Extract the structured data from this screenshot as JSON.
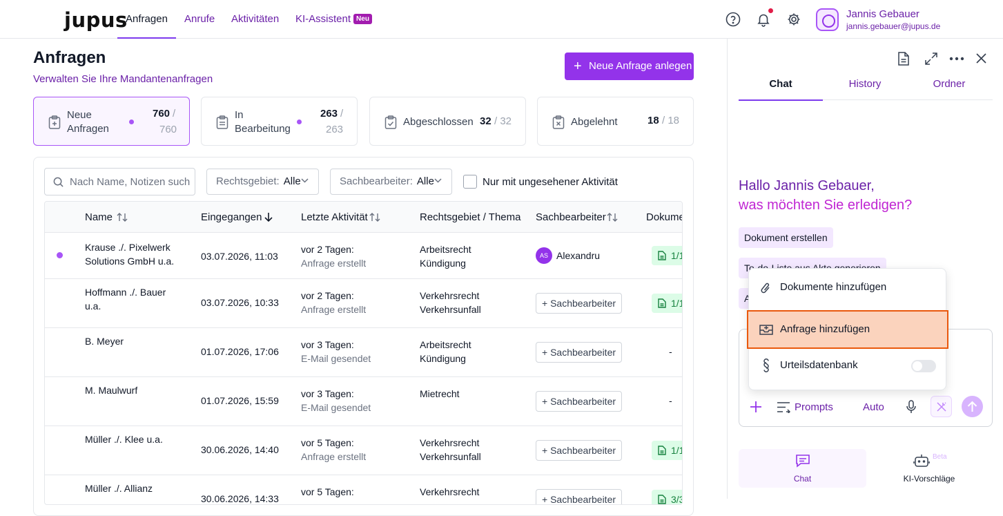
{
  "header": {
    "logo": "jupus",
    "nav": [
      {
        "label": "Anfragen",
        "active": true
      },
      {
        "label": "Anrufe"
      },
      {
        "label": "Aktivitäten"
      },
      {
        "label": "KI-Assistent",
        "badge": "Neu"
      }
    ],
    "user": {
      "name": "Jannis Gebauer",
      "email": "jannis.gebauer@jupus.de"
    }
  },
  "main": {
    "title": "Anfragen",
    "subtitle": "Verwalten Sie Ihre Mandantenanfragen",
    "new_button": "Neue Anfrage anlegen",
    "stats": [
      {
        "label_l1": "Neue",
        "label_l2": "Anfragen",
        "count": "760",
        "sep": "/",
        "total": "760"
      },
      {
        "label_l1": "In",
        "label_l2": "Bearbeitung",
        "count": "263",
        "sep": "/",
        "total": "263"
      },
      {
        "label": "Abgeschlossen",
        "count": "32",
        "total": "/ 32"
      },
      {
        "label": "Abgelehnt",
        "count": "18",
        "total": "/ 18"
      }
    ],
    "filters": {
      "search_placeholder": "Nach Name, Notizen suchen",
      "rechtsgebiet": {
        "label": "Rechtsgebiet:",
        "value": "Alle"
      },
      "sachbearbeiter": {
        "label": "Sachbearbeiter:",
        "value": "Alle"
      },
      "checkbox_label": "Nur mit ungesehener Aktivität"
    },
    "table": {
      "headers": [
        "Name",
        "Eingegangen",
        "Letzte Aktivität",
        "Rechtsgebiet / Thema",
        "Sachbearbeiter",
        "Dokumente"
      ],
      "assign_label": "+ Sachbearbeiter",
      "rows": [
        {
          "name_l1": "Krause ./. Pixelwerk",
          "name_l2": "Solutions GmbH u.a.",
          "date": "03.07.2026, 11:03",
          "act_l1": "vor 2 Tagen:",
          "act_l2": "Anfrage erstellt",
          "area_l1": "Arbeitsrecht",
          "area_l2": "Kündigung",
          "assignee_initials": "AS",
          "assignee": "Alexandru",
          "docs": "1/1"
        },
        {
          "name_l1": "Hoffmann ./. Bauer",
          "name_l2": "u.a.",
          "date": "03.07.2026, 10:33",
          "act_l1": "vor 2 Tagen:",
          "act_l2": "Anfrage erstellt",
          "area_l1": "Verkehrsrecht",
          "area_l2": "Verkehrsunfall",
          "docs": "1/1"
        },
        {
          "name_l1": "B. Meyer",
          "name_l2": "",
          "date": "01.07.2026, 17:06",
          "act_l1": "vor 3 Tagen:",
          "act_l2": "E-Mail gesendet",
          "area_l1": "Arbeitsrecht",
          "area_l2": "Kündigung",
          "docs": "-"
        },
        {
          "name_l1": "M. Maulwurf",
          "name_l2": "",
          "date": "01.07.2026, 15:59",
          "act_l1": "vor 3 Tagen:",
          "act_l2": "E-Mail gesendet",
          "area_l1": "Mietrecht",
          "area_l2": "",
          "docs": "-"
        },
        {
          "name_l1": "Müller ./. Klee u.a.",
          "name_l2": "",
          "date": "30.06.2026, 14:40",
          "act_l1": "vor 5 Tagen:",
          "act_l2": "Anfrage erstellt",
          "area_l1": "Verkehrsrecht",
          "area_l2": "Verkehrsunfall",
          "docs": "1/1"
        },
        {
          "name_l1": "Müller ./. Allianz",
          "name_l2": "",
          "date": "30.06.2026, 14:33",
          "act_l1": "vor 5 Tagen:",
          "act_l2": "",
          "area_l1": "Verkehrsrecht",
          "area_l2": "",
          "docs": "3/3"
        }
      ]
    }
  },
  "assistant": {
    "tabs": [
      {
        "label": "Chat",
        "active": true
      },
      {
        "label": "History"
      },
      {
        "label": "Ordner"
      }
    ],
    "greeting_l1": "Hallo Jannis Gebauer,",
    "greeting_l2": "was möchten Sie erledigen?",
    "suggestions": [
      "Dokument erstellen",
      "To-do-Liste aus Akte generieren",
      "A"
    ],
    "menu": [
      {
        "label": "Dokumente hinzufügen",
        "icon": "paperclip-icon"
      },
      {
        "label": "Anfrage hinzufügen",
        "icon": "inbox-icon",
        "highlighted": true
      },
      {
        "label": "Urteilsdatenbank",
        "icon": "paragraph-icon",
        "toggle": false
      }
    ],
    "input_bar": {
      "prompts_label": "Prompts",
      "mode_label": "Auto"
    },
    "bottom_nav": [
      {
        "label": "Chat",
        "active": true
      },
      {
        "label": "KI-Vorschläge",
        "badge": "Beta"
      }
    ]
  },
  "colors": {
    "accent": "#9333ea",
    "highlight_border": "#ea580c",
    "highlight_bg": "#fbd3bd",
    "magenta": "#c026d3"
  }
}
